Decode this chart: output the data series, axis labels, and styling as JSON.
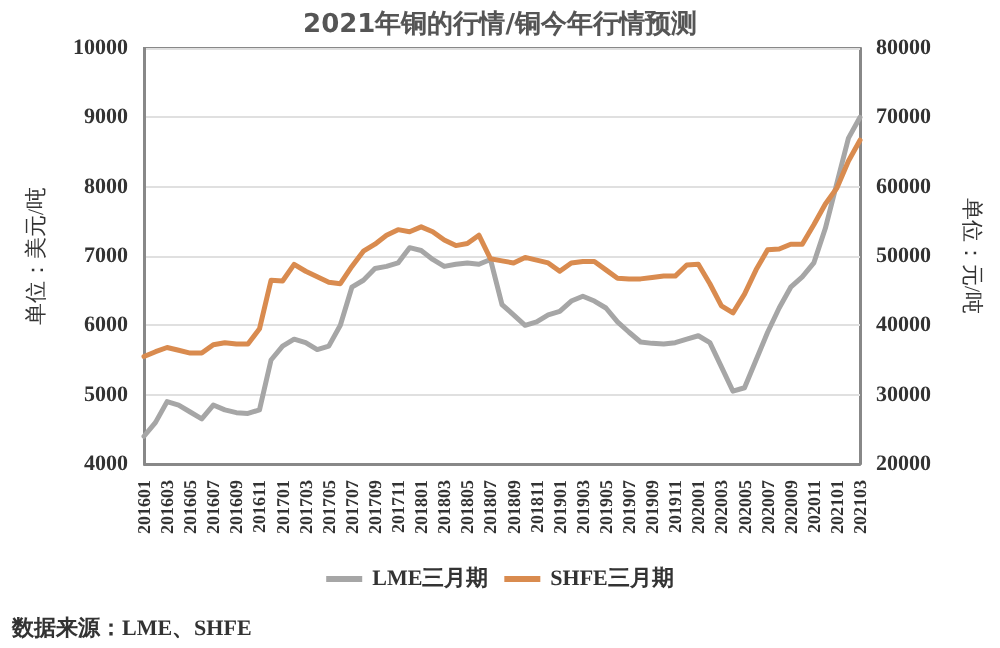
{
  "chart_data": {
    "type": "line",
    "title": "2021年铜的行情/铜今年行情预测",
    "ylabel": "单位：美元/吨",
    "y2label": "单位：元/吨",
    "annotations": [
      "数据来源：LME、SHFE"
    ],
    "categories": [
      "201601",
      null,
      "201603",
      null,
      "201605",
      null,
      "201607",
      null,
      "201609",
      null,
      "201611",
      null,
      "201701",
      null,
      "201703",
      null,
      "201705",
      null,
      "201707",
      null,
      "201709",
      null,
      "201711",
      null,
      "201801",
      null,
      "201803",
      null,
      "201805",
      null,
      "201807",
      null,
      "201809",
      null,
      "201811",
      null,
      "201901",
      null,
      "201903",
      null,
      "201905",
      null,
      "201907",
      null,
      "201909",
      null,
      "201911",
      null,
      "202001",
      null,
      "202003",
      null,
      "202005",
      null,
      "202007",
      null,
      "202009",
      null,
      "202011",
      null,
      "202101",
      null,
      "202103"
    ],
    "series": [
      {
        "name": "LME三月期",
        "color": "#a6a6a6",
        "values": [
          4400,
          4600,
          4900,
          4850,
          4750,
          4650,
          4850,
          4780,
          4740,
          4730,
          4780,
          5500,
          5700,
          5800,
          5750,
          5650,
          5700,
          6000,
          6550,
          6650,
          6820,
          6850,
          6900,
          7120,
          7080,
          6950,
          6850,
          6880,
          6900,
          6880,
          6950,
          6300,
          6150,
          6000,
          6050,
          6150,
          6200,
          6350,
          6420,
          6350,
          6250,
          6050,
          5900,
          5760,
          5740,
          5730,
          5750,
          5800,
          5850,
          5750,
          5400,
          5050,
          5100,
          5500,
          5900,
          6250,
          6550,
          6700,
          6900,
          7400,
          8050,
          8700,
          9000
        ]
      },
      {
        "name": "SHFE三月期",
        "color": "#d98b4f",
        "axis": "y2",
        "values": [
          35500,
          36200,
          36800,
          36400,
          36000,
          36000,
          37200,
          37500,
          37300,
          37300,
          39500,
          46500,
          46400,
          48800,
          47800,
          47000,
          46200,
          46000,
          48500,
          50700,
          51700,
          53000,
          53800,
          53500,
          54200,
          53500,
          52300,
          51500,
          51800,
          53000,
          49600,
          49300,
          49000,
          49800,
          49400,
          49000,
          47800,
          49000,
          49200,
          49200,
          48000,
          46800,
          46700,
          46700,
          46900,
          47100,
          47100,
          48700,
          48800,
          46000,
          42800,
          41800,
          44500,
          48000,
          50900,
          51000,
          51700,
          51700,
          54500,
          57500,
          59800,
          63700,
          66700
        ]
      }
    ],
    "ylim": [
      4000,
      10000
    ],
    "yticks": [
      4000,
      5000,
      6000,
      7000,
      8000,
      9000,
      10000
    ],
    "y2lim": [
      20000,
      80000
    ],
    "y2ticks": [
      20000,
      30000,
      40000,
      50000,
      60000,
      70000,
      80000
    ],
    "grid": "y",
    "legend": "bottom",
    "marker": "none",
    "line_style": "solid"
  }
}
